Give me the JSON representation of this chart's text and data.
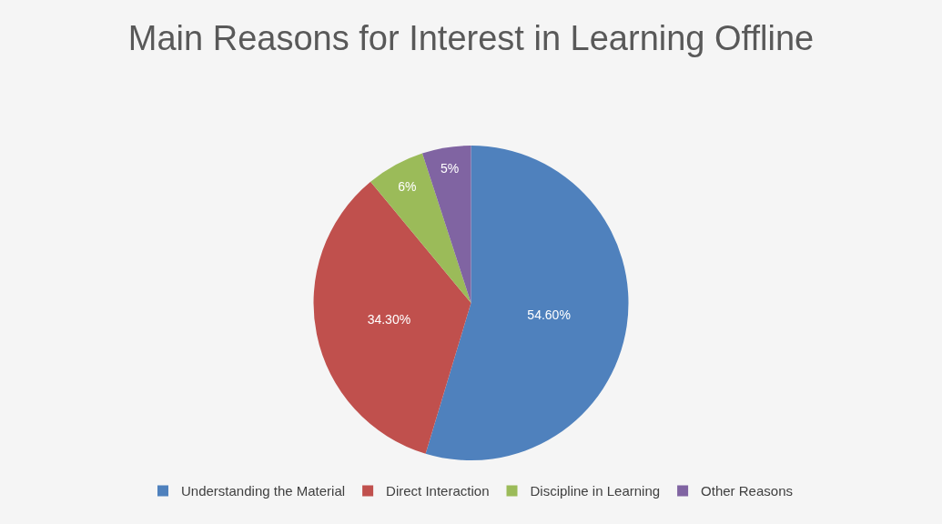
{
  "chart_data": {
    "type": "pie",
    "title": "Main Reasons for Interest in Learning Offline",
    "categories": [
      "Understanding the Material",
      "Direct Interaction",
      "Discipline in Learning",
      "Other Reasons"
    ],
    "values": [
      54.6,
      34.3,
      6,
      5
    ],
    "value_labels": [
      "54.60%",
      "34.30%",
      "6%",
      "5%"
    ],
    "colors": [
      "#4f81bd",
      "#c0504d",
      "#9bbb59",
      "#8064a2"
    ],
    "legend": "bottom"
  }
}
